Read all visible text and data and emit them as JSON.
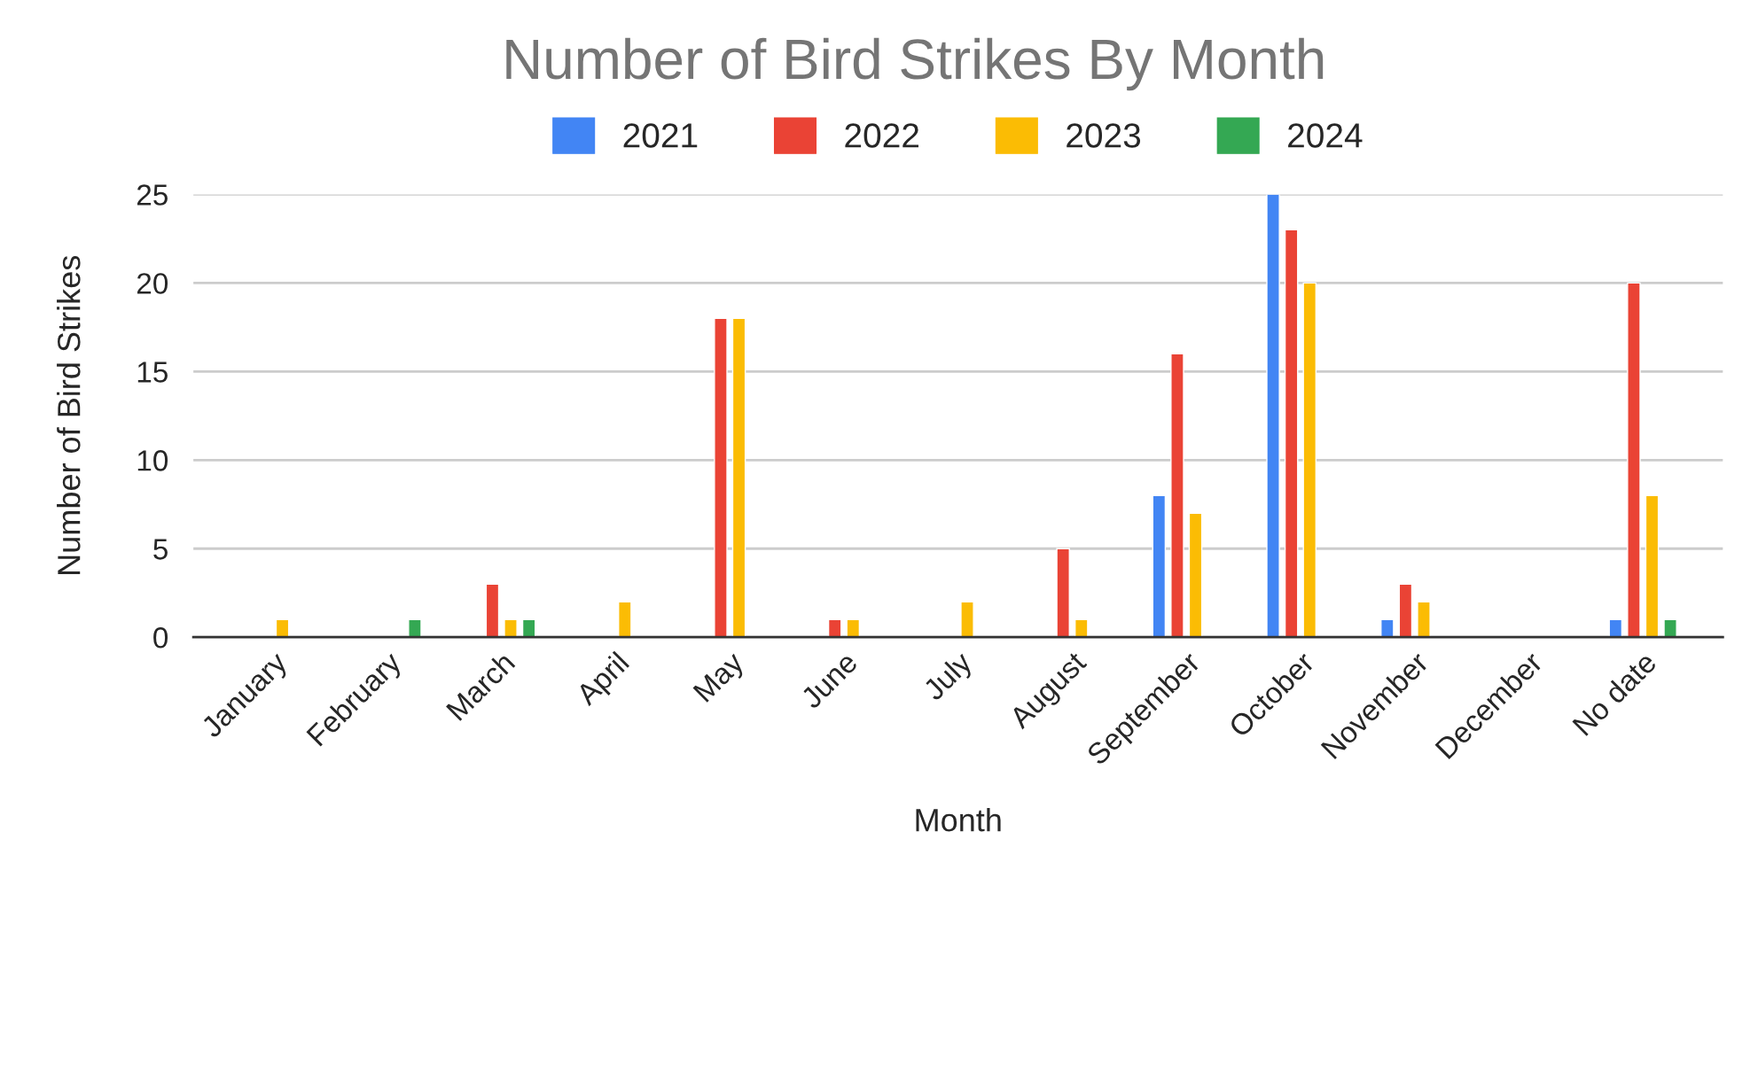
{
  "chart_data": {
    "type": "bar",
    "title": "Number of Bird Strikes By Month",
    "xlabel": "Month",
    "ylabel": "Number of Bird Strikes",
    "categories": [
      "January",
      "February",
      "March",
      "April",
      "May",
      "June",
      "July",
      "August",
      "September",
      "October",
      "November",
      "December",
      "No date"
    ],
    "series": [
      {
        "name": "2021",
        "color": "#4285f4",
        "values": [
          null,
          null,
          null,
          null,
          null,
          null,
          null,
          null,
          8,
          25,
          1,
          null,
          1
        ]
      },
      {
        "name": "2022",
        "color": "#ea4335",
        "values": [
          null,
          null,
          3,
          null,
          18,
          1,
          null,
          5,
          16,
          23,
          3,
          null,
          20
        ]
      },
      {
        "name": "2023",
        "color": "#fbbc04",
        "values": [
          1,
          null,
          1,
          2,
          18,
          1,
          2,
          1,
          7,
          20,
          2,
          null,
          8
        ]
      },
      {
        "name": "2024",
        "color": "#34a853",
        "values": [
          null,
          1,
          1,
          null,
          null,
          null,
          null,
          null,
          null,
          null,
          null,
          null,
          1
        ]
      }
    ],
    "ylim": [
      0,
      25
    ],
    "yticks": [
      0,
      5,
      10,
      15,
      20,
      25
    ],
    "grid": "y",
    "legend": "top"
  }
}
